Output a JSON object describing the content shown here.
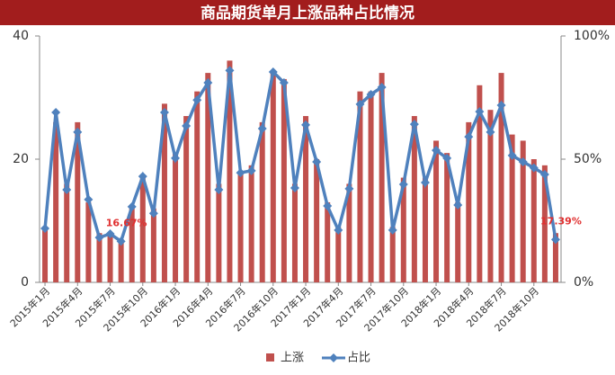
{
  "chart_data": {
    "type": "bar",
    "title": "商品期货单月上涨品种占比情况",
    "categories": [
      "2015年1月",
      null,
      null,
      "2015年4月",
      null,
      null,
      "2015年7月",
      null,
      null,
      "2015年10月",
      null,
      null,
      "2016年1月",
      null,
      null,
      "2016年4月",
      null,
      null,
      "2016年7月",
      null,
      null,
      "2016年10月",
      null,
      null,
      "2017年1月",
      null,
      null,
      "2017年4月",
      null,
      null,
      "2017年7月",
      null,
      null,
      "2017年10月",
      null,
      null,
      "2018年1月",
      null,
      null,
      "2018年4月",
      null,
      null,
      "2018年7月",
      null,
      null,
      "2018年10月",
      null,
      null
    ],
    "series": [
      {
        "name": "上涨",
        "type": "bar",
        "color": "#c0504d",
        "values": [
          9,
          26,
          16,
          26,
          13,
          8,
          8,
          7,
          12,
          17,
          12,
          29,
          21,
          27,
          31,
          34,
          16,
          36,
          18,
          19,
          26,
          34,
          33,
          16,
          27,
          20,
          13,
          9,
          16,
          31,
          31,
          34,
          9,
          17,
          27,
          17,
          23,
          21,
          13,
          26,
          32,
          28,
          34,
          24,
          23,
          20,
          19,
          8
        ]
      },
      {
        "name": "占比",
        "type": "line",
        "axis": "y2",
        "color": "#4f81bd",
        "values": [
          21.9,
          69,
          37.6,
          61,
          33.6,
          18.2,
          19.7,
          16.67,
          30.7,
          43,
          28,
          69,
          50.4,
          63.5,
          74,
          81,
          37.6,
          86,
          44.5,
          45.3,
          62.4,
          85.4,
          81,
          38.3,
          63.9,
          48.9,
          31,
          21.2,
          38,
          72.3,
          76.3,
          79.2,
          21.2,
          39.8,
          64.2,
          40.5,
          53.6,
          50.4,
          31.4,
          59.1,
          69.3,
          61,
          71.9,
          51.5,
          48.9,
          46.5,
          43.8,
          17.39
        ],
        "value_labels": [
          null,
          null,
          null,
          null,
          null,
          null,
          null,
          "16.67%",
          null,
          null,
          null,
          null,
          null,
          null,
          null,
          null,
          null,
          null,
          null,
          null,
          null,
          null,
          null,
          null,
          null,
          null,
          null,
          null,
          null,
          null,
          null,
          null,
          null,
          null,
          null,
          null,
          null,
          null,
          null,
          null,
          null,
          null,
          null,
          null,
          null,
          null,
          null,
          "17.39%"
        ]
      }
    ],
    "ylim": [
      0,
      40
    ],
    "yticks": [
      0,
      20,
      40
    ],
    "y2lim": [
      0,
      100
    ],
    "y2ticks": [
      {
        "value": 0,
        "label": "0%"
      },
      {
        "value": 50,
        "label": "50%"
      },
      {
        "value": 100,
        "label": "100%"
      }
    ],
    "legend": "bottom"
  }
}
